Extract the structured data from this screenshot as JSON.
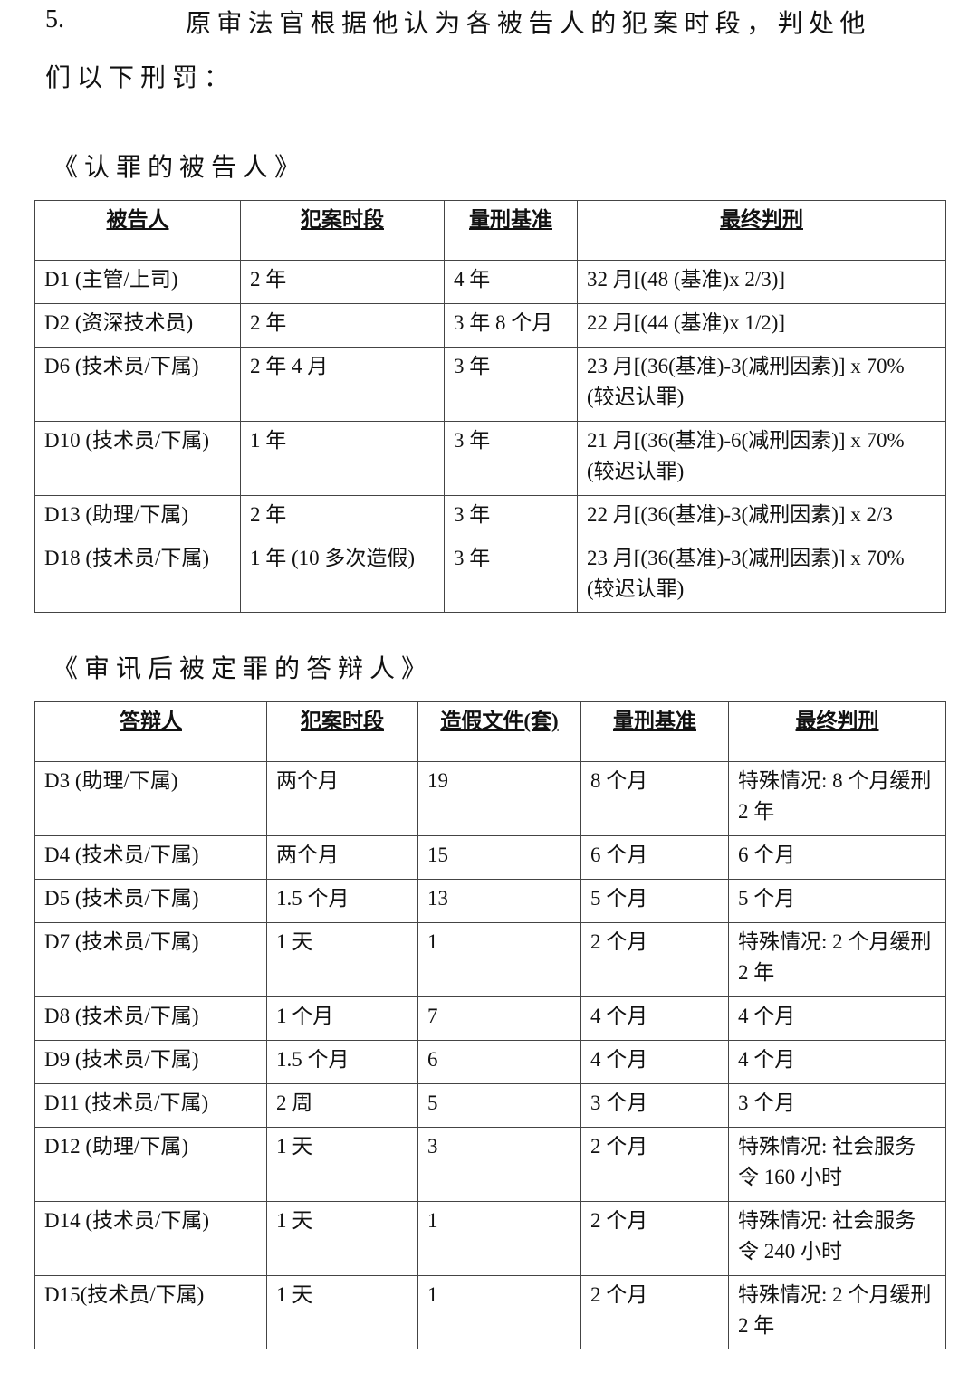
{
  "paragraph": {
    "number": "5.",
    "line1": "原审法官根据他认为各被告人的犯案时段，判处他",
    "line2": "们以下刑罚："
  },
  "section1": {
    "title": "《认罪的被告人》",
    "headers": [
      "被告人",
      "犯案时段",
      "量刑基准",
      "最终判刑"
    ],
    "rows": [
      [
        "D1 (主管/上司)",
        "2 年",
        "4 年",
        "32 月[(48 (基准)x 2/3)]"
      ],
      [
        "D2 (资深技术员)",
        "2 年",
        "3 年 8 个月",
        "22 月[(44 (基准)x 1/2)]"
      ],
      [
        "D6 (技术员/下属)",
        "2 年 4 月",
        "3 年",
        "23 月[(36(基准)-3(减刑因素)] x 70% (较迟认罪)"
      ],
      [
        "D10 (技术员/下属)",
        "1 年",
        "3 年",
        "21 月[(36(基准)-6(减刑因素)] x 70% (较迟认罪)"
      ],
      [
        "D13 (助理/下属)",
        "2 年",
        "3 年",
        "22 月[(36(基准)-3(减刑因素)] x 2/3"
      ],
      [
        "D18 (技术员/下属)",
        "1 年 (10 多次造假)",
        "3 年",
        "23 月[(36(基准)-3(减刑因素)] x 70% (较迟认罪)"
      ]
    ]
  },
  "section2": {
    "title": "《审讯后被定罪的答辩人》",
    "headers": [
      "答辩人",
      "犯案时段",
      "造假文件(套)",
      "量刑基准",
      "最终判刑"
    ],
    "rows": [
      [
        "D3 (助理/下属)",
        "两个月",
        "19",
        "8 个月",
        "特殊情况: 8 个月缓刑 2 年"
      ],
      [
        "D4 (技术员/下属)",
        "两个月",
        "15",
        "6 个月",
        "6 个月"
      ],
      [
        "D5 (技术员/下属)",
        "1.5 个月",
        "13",
        "5 个月",
        "5 个月"
      ],
      [
        "D7 (技术员/下属)",
        "1 天",
        "1",
        "2 个月",
        "特殊情况: 2 个月缓刑 2 年"
      ],
      [
        "D8 (技术员/下属)",
        "1 个月",
        "7",
        "4 个月",
        "4 个月"
      ],
      [
        "D9 (技术员/下属)",
        "1.5 个月",
        "6",
        "4 个月",
        "4 个月"
      ],
      [
        "D11 (技术员/下属)",
        "2 周",
        "5",
        "3 个月",
        "3 个月"
      ],
      [
        "D12 (助理/下属)",
        "1 天",
        "3",
        "2 个月",
        "特殊情况: 社会服务令 160 小时"
      ],
      [
        "D14 (技术员/下属)",
        "1 天",
        "1",
        "2 个月",
        "特殊情况: 社会服务令 240 小时"
      ],
      [
        "D15(技术员/下属)",
        "1 天",
        "1",
        "2 个月",
        "特殊情况: 2 个月缓刑 2 年"
      ]
    ]
  }
}
